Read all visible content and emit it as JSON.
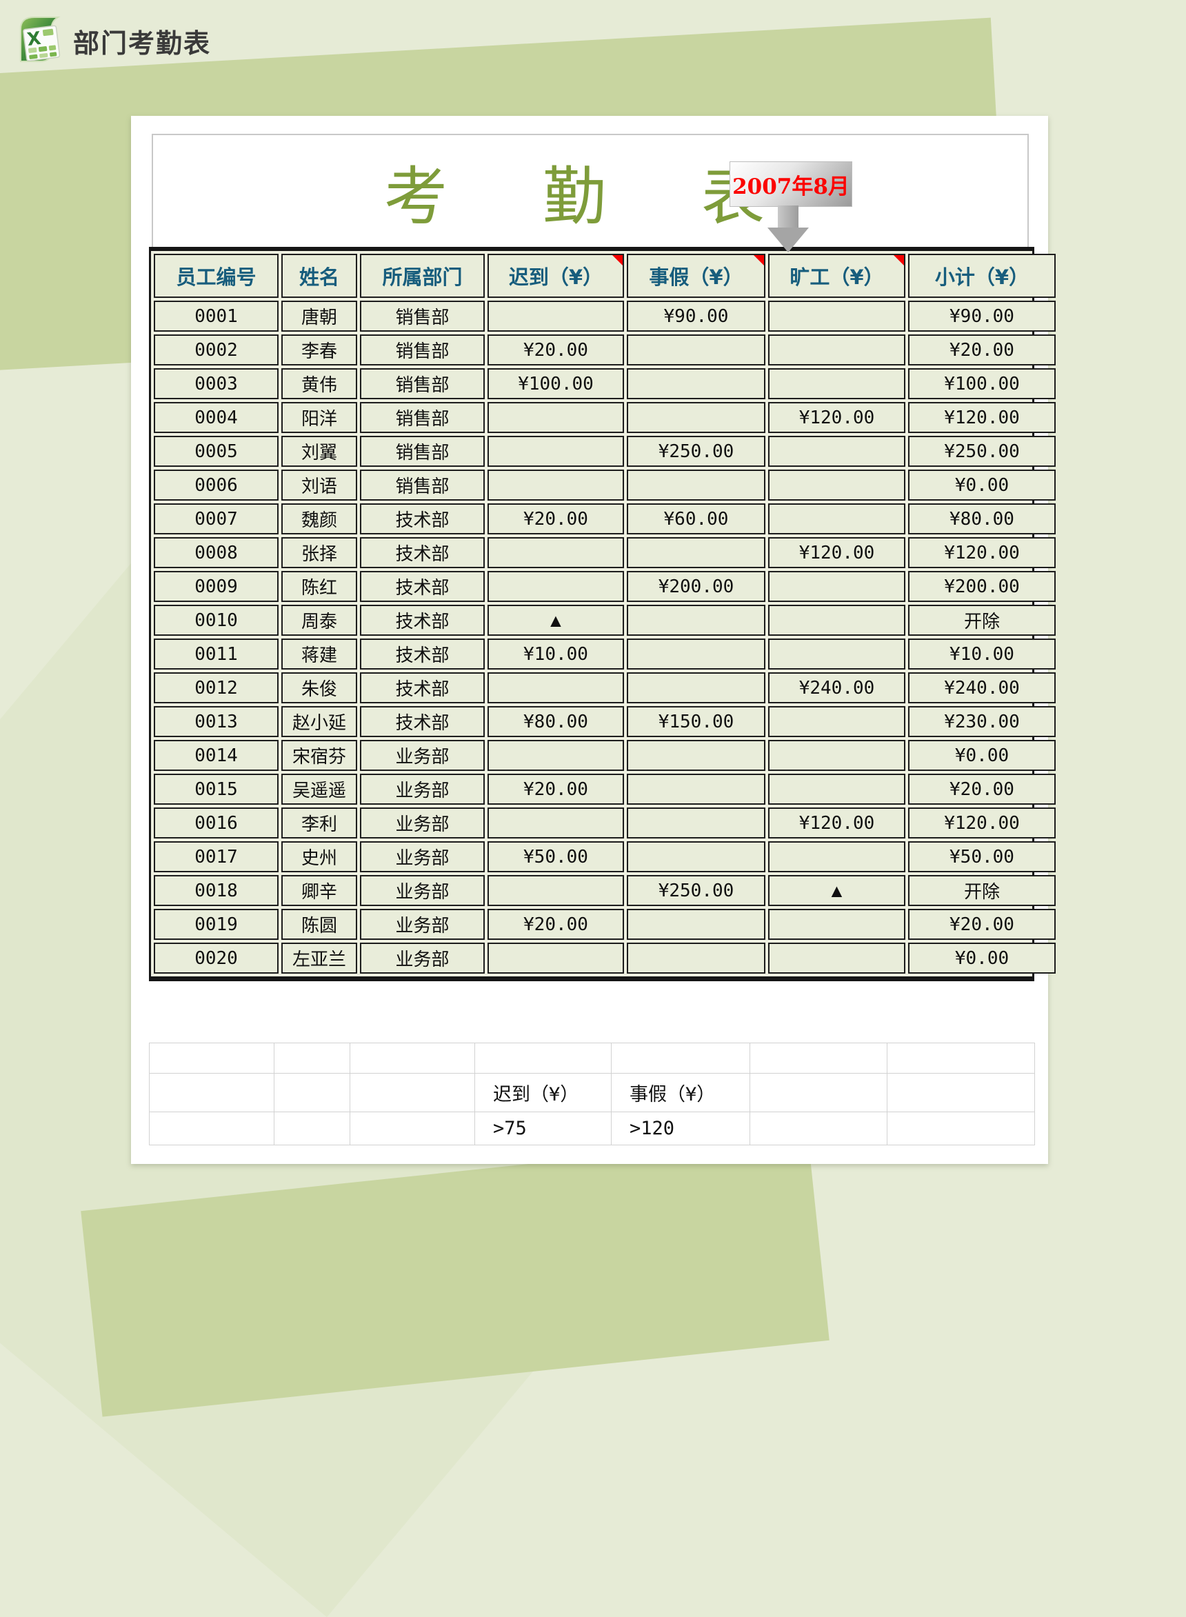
{
  "page": {
    "app_title": "部门考勤表"
  },
  "sheet": {
    "title": "考勤表",
    "date_callout": "2007年8月"
  },
  "table": {
    "columns": [
      {
        "label": "员工编号",
        "comment": false
      },
      {
        "label": "姓名",
        "comment": false
      },
      {
        "label": "所属部门",
        "comment": false
      },
      {
        "label": "迟到（¥）",
        "comment": true
      },
      {
        "label": "事假（¥）",
        "comment": true
      },
      {
        "label": "旷工（¥）",
        "comment": true
      },
      {
        "label": "小计（¥）",
        "comment": false
      }
    ],
    "rows": [
      [
        "0001",
        "唐朝",
        "销售部",
        "",
        "¥90.00",
        "",
        "¥90.00"
      ],
      [
        "0002",
        "李春",
        "销售部",
        "¥20.00",
        "",
        "",
        "¥20.00"
      ],
      [
        "0003",
        "黄伟",
        "销售部",
        "¥100.00",
        "",
        "",
        "¥100.00"
      ],
      [
        "0004",
        "阳洋",
        "销售部",
        "",
        "",
        "¥120.00",
        "¥120.00"
      ],
      [
        "0005",
        "刘翼",
        "销售部",
        "",
        "¥250.00",
        "",
        "¥250.00"
      ],
      [
        "0006",
        "刘语",
        "销售部",
        "",
        "",
        "",
        "¥0.00"
      ],
      [
        "0007",
        "魏颜",
        "技术部",
        "¥20.00",
        "¥60.00",
        "",
        "¥80.00"
      ],
      [
        "0008",
        "张择",
        "技术部",
        "",
        "",
        "¥120.00",
        "¥120.00"
      ],
      [
        "0009",
        "陈红",
        "技术部",
        "",
        "¥200.00",
        "",
        "¥200.00"
      ],
      [
        "0010",
        "周泰",
        "技术部",
        "▲",
        "",
        "",
        "开除"
      ],
      [
        "0011",
        "蒋建",
        "技术部",
        "¥10.00",
        "",
        "",
        "¥10.00"
      ],
      [
        "0012",
        "朱俊",
        "技术部",
        "",
        "",
        "¥240.00",
        "¥240.00"
      ],
      [
        "0013",
        "赵小延",
        "技术部",
        "¥80.00",
        "¥150.00",
        "",
        "¥230.00"
      ],
      [
        "0014",
        "宋宿芬",
        "业务部",
        "",
        "",
        "",
        "¥0.00"
      ],
      [
        "0015",
        "吴遥遥",
        "业务部",
        "¥20.00",
        "",
        "",
        "¥20.00"
      ],
      [
        "0016",
        "李利",
        "业务部",
        "",
        "",
        "¥120.00",
        "¥120.00"
      ],
      [
        "0017",
        "史州",
        "业务部",
        "¥50.00",
        "",
        "",
        "¥50.00"
      ],
      [
        "0018",
        "卿辛",
        "业务部",
        "",
        "¥250.00",
        "▲",
        "开除"
      ],
      [
        "0019",
        "陈圆",
        "业务部",
        "¥20.00",
        "",
        "",
        "¥20.00"
      ],
      [
        "0020",
        "左亚兰",
        "业务部",
        "",
        "",
        "",
        "¥0.00"
      ]
    ]
  },
  "footer": {
    "criteria_headers": [
      "迟到（¥）",
      "事假（¥）"
    ],
    "criteria_values": [
      ">75",
      ">120"
    ]
  },
  "icons": {
    "excel_icon": "excel-logo"
  },
  "colors": {
    "page_background": "#e6ebd6",
    "background_polygon": "#c8d5a0",
    "cell_background": "#e9edda",
    "table_border": "#1d1d1d",
    "header_text": "#175d7d",
    "title_text": "#7e9c3a",
    "callout_text": "#fb0300",
    "comment_marker": "#f40000",
    "footer_gridline": "#d2d2d2"
  }
}
